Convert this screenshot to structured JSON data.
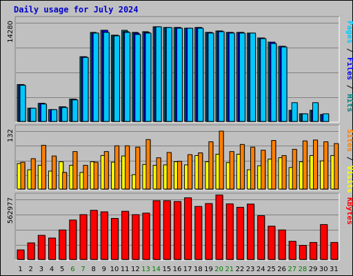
{
  "chart_data": {
    "type": "bar",
    "title": "Daily usage for July 2024",
    "categories": [
      "1",
      "2",
      "3",
      "4",
      "5",
      "6",
      "7",
      "8",
      "9",
      "10",
      "11",
      "12",
      "13",
      "14",
      "15",
      "16",
      "17",
      "18",
      "19",
      "20",
      "21",
      "22",
      "23",
      "24",
      "25",
      "26",
      "27",
      "28",
      "29",
      "30",
      "31"
    ],
    "weekend_days": [
      "6",
      "7",
      "13",
      "14",
      "20",
      "21",
      "27",
      "28"
    ],
    "panels": [
      {
        "name": "top",
        "ymax_label": "14280",
        "ymax": 14280,
        "side_labels": [
          {
            "text": "Pages",
            "color": "#00c8ff"
          },
          {
            "text": " / ",
            "color": "#000000"
          },
          {
            "text": "Files",
            "color": "#0000ff"
          },
          {
            "text": " / ",
            "color": "#000000"
          },
          {
            "text": "Hits",
            "color": "#008080"
          }
        ],
        "series": [
          {
            "name": "Hits",
            "color": "#008080",
            "values": [
              5400,
              2000,
              2700,
              1800,
              2200,
              3300,
              9400,
              12900,
              13200,
              12500,
              13200,
              12900,
              13000,
              13700,
              13600,
              13600,
              13500,
              13600,
              12900,
              13100,
              12900,
              12900,
              12800,
              12100,
              11500,
              10900,
              1700,
              1200,
              1700,
              1100,
              0
            ]
          },
          {
            "name": "Files",
            "color": "#0000ff",
            "values": [
              5400,
              2000,
              2700,
              1800,
              2200,
              3300,
              9400,
              12800,
              13200,
              12500,
              13000,
              12800,
              12900,
              13700,
              13600,
              13600,
              13500,
              13600,
              12900,
              13100,
              12900,
              12900,
              12800,
              12100,
              11500,
              10900,
              1700,
              1200,
              1700,
              1100,
              0
            ]
          },
          {
            "name": "Pages",
            "color": "#00c8ff",
            "values": [
              5300,
              2000,
              2600,
              1800,
              2100,
              3200,
              9300,
              12800,
              12900,
              12400,
              12900,
              12600,
              12800,
              13700,
              13600,
              13500,
              13500,
              13500,
              12800,
              13000,
              12800,
              12800,
              12800,
              12000,
              11300,
              10800,
              2800,
              1200,
              2800,
              1200,
              0
            ]
          }
        ]
      },
      {
        "name": "middle",
        "ymax_label": "132",
        "ymax": 132,
        "side_labels": [
          {
            "text": "Sites",
            "color": "#ff8000"
          },
          {
            "text": " / ",
            "color": "#000000"
          },
          {
            "text": "Visits",
            "color": "#ffff00"
          }
        ],
        "series": [
          {
            "name": "Visits",
            "color": "#ffff00",
            "values": [
              59,
              45,
              55,
              42,
              63,
              55,
              39,
              63,
              77,
              62,
              76,
              34,
              57,
              55,
              56,
              63,
              56,
              77,
              63,
              80,
              61,
              80,
              45,
              54,
              69,
              72,
              50,
              63,
              77,
              65,
              77
            ]
          },
          {
            "name": "Sites",
            "color": "#ff8000",
            "values": [
              62,
              70,
              100,
              76,
              39,
              86,
              55,
              62,
              86,
              99,
              99,
              96,
              113,
              72,
              84,
              64,
              79,
              83,
              108,
              132,
              86,
              102,
              96,
              89,
              111,
              77,
              91,
              110,
              112,
              108,
              104
            ]
          }
        ]
      },
      {
        "name": "bottom",
        "ymax_label": "562977",
        "ymax": 562977,
        "side_labels": [
          {
            "text": "KBytes",
            "color": "#ff0000"
          }
        ],
        "series": [
          {
            "name": "KBytes",
            "color": "#ff0000",
            "values": [
              95000,
              160000,
              230000,
              205000,
              280000,
              372000,
              422000,
              462000,
              448000,
              387000,
              453000,
              422000,
              436000,
              551000,
              551000,
              544000,
              578000,
              498000,
              525000,
              604000,
              522000,
              490000,
              520000,
              412000,
              315000,
              280000,
              175000,
              137000,
              164000,
              330000,
              164000
            ]
          }
        ]
      }
    ]
  }
}
